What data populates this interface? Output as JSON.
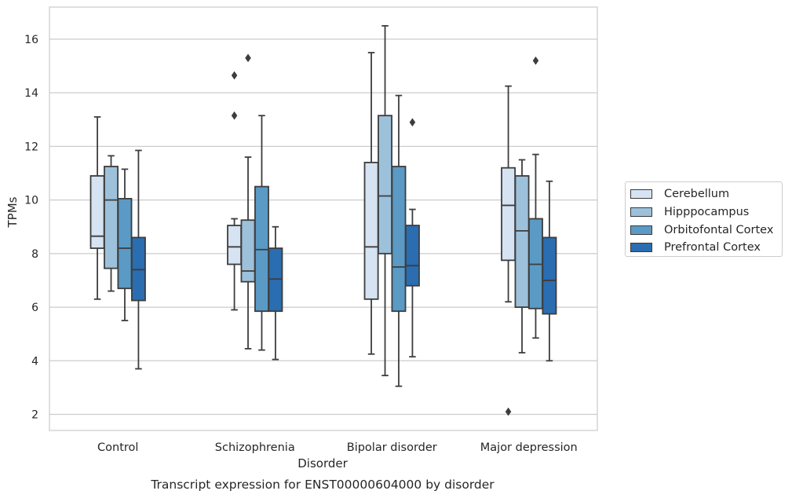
{
  "chart_data": {
    "type": "box",
    "title": "Transcript expression for ENST00000604000 by disorder",
    "xlabel": "Disorder",
    "ylabel": "TPMs",
    "ylim": [
      1.4,
      17.2
    ],
    "yticks": [
      2,
      4,
      6,
      8,
      10,
      12,
      14,
      16
    ],
    "grid": true,
    "legend_position": "right",
    "categories": [
      "Control",
      "Schizophrenia",
      "Bipolar disorder",
      "Major depression"
    ],
    "series": [
      {
        "name": "Cerebellum",
        "color": "#d5e3f2",
        "boxes": [
          {
            "whisker_low": 6.3,
            "q1": 8.2,
            "median": 8.65,
            "q3": 10.9,
            "whisker_high": 13.1,
            "outliers": []
          },
          {
            "whisker_low": 5.9,
            "q1": 7.6,
            "median": 8.25,
            "q3": 9.05,
            "whisker_high": 9.3,
            "outliers": [
              13.15,
              14.65
            ]
          },
          {
            "whisker_low": 4.25,
            "q1": 6.3,
            "median": 8.25,
            "q3": 11.4,
            "whisker_high": 15.5,
            "outliers": []
          },
          {
            "whisker_low": 6.2,
            "q1": 7.75,
            "median": 9.8,
            "q3": 11.2,
            "whisker_high": 14.25,
            "outliers": [
              2.1
            ]
          }
        ]
      },
      {
        "name": "Hipppocampus",
        "color": "#9dc1db",
        "boxes": [
          {
            "whisker_low": 6.6,
            "q1": 7.45,
            "median": 10.0,
            "q3": 11.25,
            "whisker_high": 11.65,
            "outliers": []
          },
          {
            "whisker_low": 4.45,
            "q1": 6.95,
            "median": 7.35,
            "q3": 9.25,
            "whisker_high": 11.6,
            "outliers": [
              15.3
            ]
          },
          {
            "whisker_low": 3.45,
            "q1": 8.0,
            "median": 10.15,
            "q3": 13.15,
            "whisker_high": 16.5,
            "outliers": []
          },
          {
            "whisker_low": 4.3,
            "q1": 6.0,
            "median": 8.85,
            "q3": 10.9,
            "whisker_high": 11.5,
            "outliers": []
          }
        ]
      },
      {
        "name": "Orbitofontal Cortex",
        "color": "#5a9ac5",
        "boxes": [
          {
            "whisker_low": 5.5,
            "q1": 6.7,
            "median": 8.2,
            "q3": 10.05,
            "whisker_high": 11.15,
            "outliers": []
          },
          {
            "whisker_low": 4.4,
            "q1": 5.85,
            "median": 8.15,
            "q3": 10.5,
            "whisker_high": 13.15,
            "outliers": []
          },
          {
            "whisker_low": 3.05,
            "q1": 5.85,
            "median": 7.5,
            "q3": 11.25,
            "whisker_high": 13.9,
            "outliers": []
          },
          {
            "whisker_low": 4.85,
            "q1": 5.95,
            "median": 7.6,
            "q3": 9.3,
            "whisker_high": 11.7,
            "outliers": [
              15.2
            ]
          }
        ]
      },
      {
        "name": "Prefrontal Cortex",
        "color": "#2a6db1",
        "boxes": [
          {
            "whisker_low": 3.7,
            "q1": 6.25,
            "median": 7.4,
            "q3": 8.6,
            "whisker_high": 11.85,
            "outliers": []
          },
          {
            "whisker_low": 4.05,
            "q1": 5.85,
            "median": 7.05,
            "q3": 8.2,
            "whisker_high": 9.0,
            "outliers": []
          },
          {
            "whisker_low": 4.15,
            "q1": 6.8,
            "median": 7.55,
            "q3": 9.05,
            "whisker_high": 9.65,
            "outliers": [
              12.9
            ]
          },
          {
            "whisker_low": 4.0,
            "q1": 5.75,
            "median": 7.0,
            "q3": 8.6,
            "whisker_high": 10.7,
            "outliers": []
          }
        ]
      }
    ]
  }
}
